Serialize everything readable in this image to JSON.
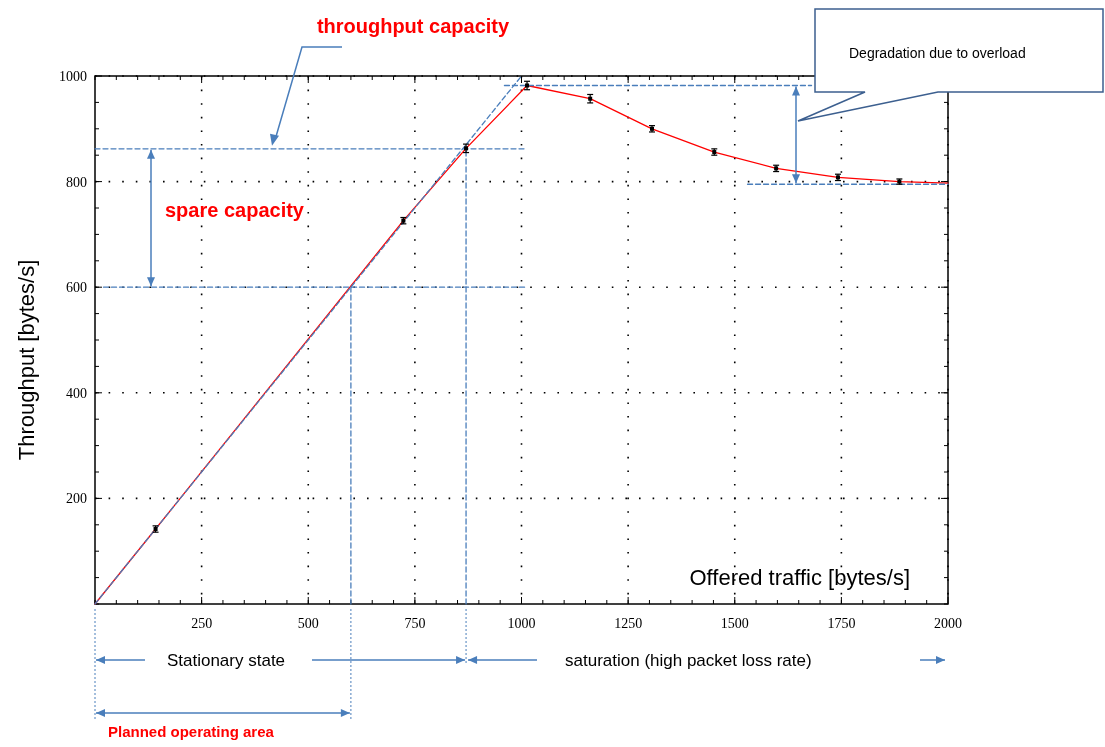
{
  "chart_data": {
    "type": "line",
    "xlabel": "Offered traffic [bytes/s]",
    "ylabel": "Throughput [bytes/s]",
    "xlim": [
      0,
      2000
    ],
    "ylim": [
      0,
      1000
    ],
    "xticks": [
      250,
      500,
      750,
      1000,
      1250,
      1500,
      1750,
      2000
    ],
    "yticks": [
      200,
      400,
      600,
      800,
      1000
    ],
    "grid": true,
    "annotations": [
      "throughput capacity",
      "spare capacity",
      "Degradation due to overload",
      "Stationary state",
      "saturation  (high packet loss rate)",
      "Planned operating area"
    ],
    "series": [
      {
        "color": "#ff0000",
        "x": [
          0,
          142,
          723,
          870,
          1013,
          1161,
          1306,
          1452,
          1597,
          1742,
          1886,
          2000
        ],
        "values": [
          0,
          142,
          726,
          863,
          982,
          957,
          900,
          856,
          825,
          808,
          800,
          797
        ]
      },
      {
        "type": "scatter",
        "color": "#000000",
        "marker": "square",
        "x": [
          142,
          723,
          870,
          1013,
          1161,
          1306,
          1452,
          1597,
          1742,
          1886
        ],
        "values": [
          142,
          726,
          863,
          982,
          957,
          900,
          856,
          825,
          808,
          800
        ],
        "errors": [
          6,
          6,
          8,
          8,
          8,
          6,
          6,
          6,
          6,
          5
        ]
      },
      {
        "color": "#4a7ebb",
        "line_style": "dashed",
        "x": [
          0,
          1000
        ],
        "values": [
          0,
          1000
        ]
      },
      {
        "color": "#4a7ebb",
        "line_style": "dashed",
        "x": [
          0,
          1008
        ],
        "values": [
          862,
          862
        ]
      },
      {
        "color": "#4a7ebb",
        "line_style": "dashed",
        "x": [
          20,
          1008
        ],
        "values": [
          600,
          600
        ]
      },
      {
        "color": "#4a7ebb",
        "line_style": "dashed",
        "x": [
          960,
          1680
        ],
        "values": [
          982,
          982
        ]
      },
      {
        "color": "#4a7ebb",
        "line_style": "dashed",
        "x": [
          1530,
          2000
        ],
        "values": [
          795,
          795
        ]
      },
      {
        "color": "#4a7ebb",
        "line_style": "dashed",
        "x": [
          600,
          600
        ],
        "values": [
          0,
          600
        ]
      },
      {
        "color": "#4a7ebb",
        "line_style": "dashed",
        "x": [
          870,
          870
        ],
        "values": [
          0,
          862
        ]
      }
    ]
  }
}
